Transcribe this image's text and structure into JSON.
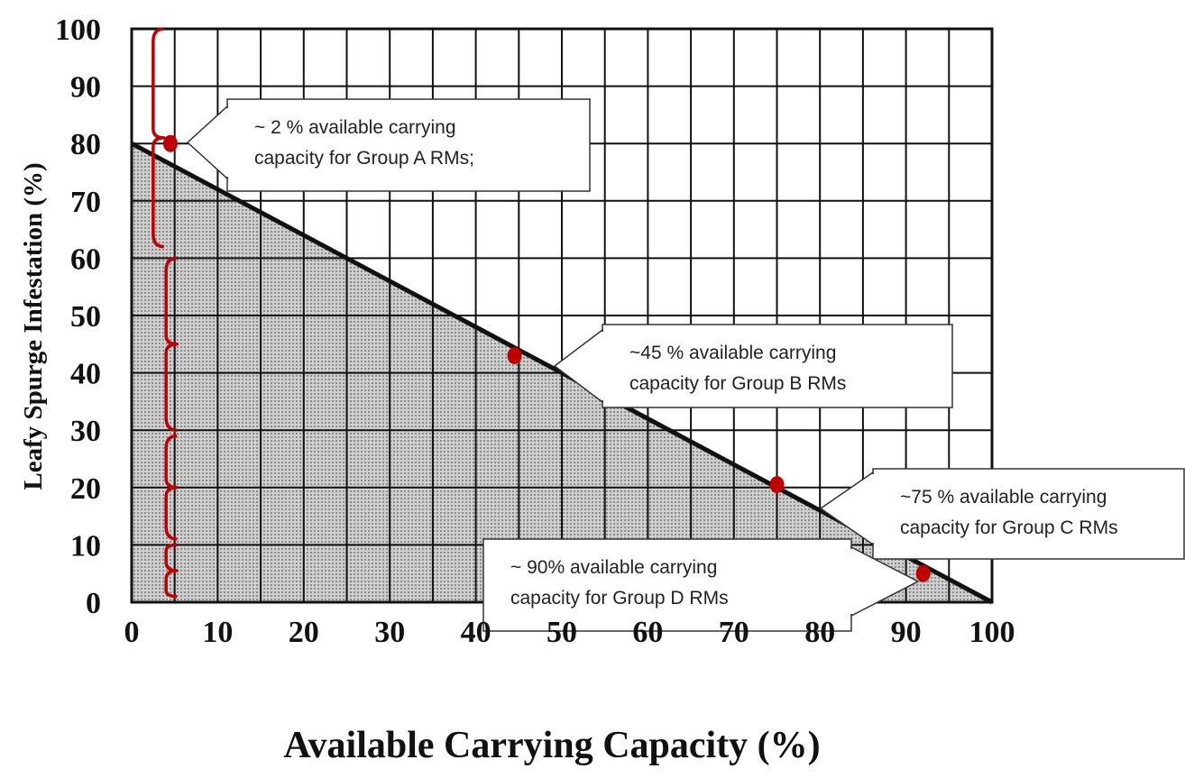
{
  "chart_data": {
    "type": "area",
    "xlabel": "Available Carrying Capacity (%)",
    "ylabel": "Leafy Spurge Infestation (%)",
    "xlim": [
      0,
      100
    ],
    "ylim": [
      0,
      100
    ],
    "x_ticks": [
      0,
      10,
      20,
      30,
      40,
      50,
      60,
      70,
      80,
      90,
      100
    ],
    "y_ticks": [
      0,
      10,
      20,
      30,
      40,
      50,
      60,
      70,
      80,
      90,
      100
    ],
    "grid": true,
    "grid_x_step": 5,
    "series": [
      {
        "x": [
          0,
          100
        ],
        "y": [
          80,
          0
        ],
        "fill": "below"
      }
    ],
    "points": [
      {
        "x": 4.5,
        "y": 80,
        "group": "A"
      },
      {
        "x": 44.5,
        "y": 43,
        "group": "B"
      },
      {
        "x": 75,
        "y": 20.5,
        "group": "C"
      },
      {
        "x": 92,
        "y": 5,
        "group": "D"
      }
    ],
    "brackets": [
      {
        "x": 2.5,
        "y_from": 100,
        "y_to": 62
      },
      {
        "x": 4,
        "y_from": 60,
        "y_to": 30
      },
      {
        "x": 4,
        "y_from": 29,
        "y_to": 11
      },
      {
        "x": 4,
        "y_from": 10,
        "y_to": 1
      }
    ],
    "annotations": [
      {
        "group": "A",
        "lines": [
          "~ 2 % available carrying",
          "capacity for Group A RMs;"
        ]
      },
      {
        "group": "B",
        "lines": [
          "~45 % available carrying",
          "capacity for Group B RMs"
        ]
      },
      {
        "group": "C",
        "lines": [
          "~75 % available carrying",
          "capacity for Group C RMs"
        ]
      },
      {
        "group": "D",
        "lines": [
          "~ 90% available carrying",
          "capacity for Group D RMs"
        ]
      }
    ],
    "colors": {
      "fill": "#b9b9b9",
      "line": "#111111",
      "marker": "#c00000",
      "bracket": "#c00000"
    }
  }
}
